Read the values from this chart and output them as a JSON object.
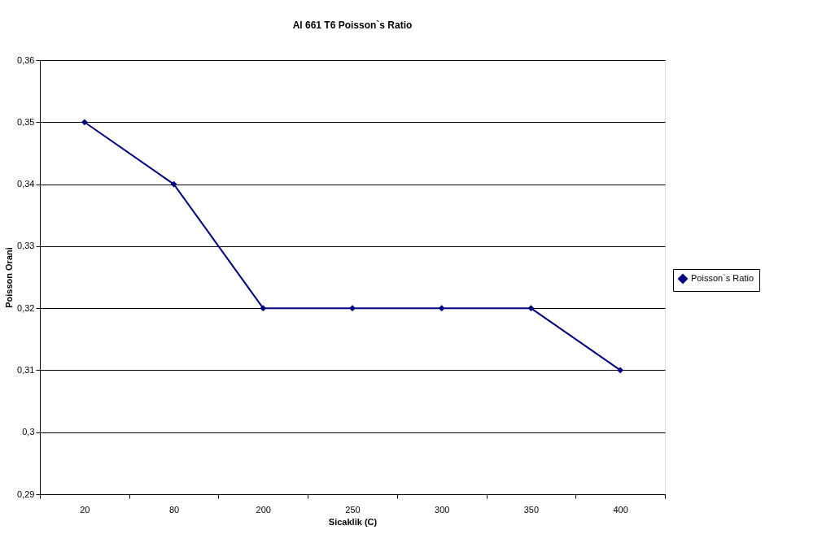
{
  "chart_data": {
    "type": "line",
    "title": "Al 661 T6 Poisson`s Ratio",
    "xlabel": "Sicaklik (C)",
    "ylabel": "Poisson Orani",
    "categories": [
      "20",
      "80",
      "200",
      "250",
      "300",
      "350",
      "400"
    ],
    "series": [
      {
        "name": "Poisson`s Ratio",
        "color": "#000080",
        "values": [
          0.35,
          0.34,
          0.32,
          0.32,
          0.32,
          0.32,
          0.31
        ]
      }
    ],
    "ylim": [
      0.29,
      0.36
    ],
    "yticks": [
      {
        "value": 0.29,
        "label": "0,29"
      },
      {
        "value": 0.3,
        "label": "0,3"
      },
      {
        "value": 0.31,
        "label": "0,31"
      },
      {
        "value": 0.32,
        "label": "0,32"
      },
      {
        "value": 0.33,
        "label": "0,33"
      },
      {
        "value": 0.34,
        "label": "0,34"
      },
      {
        "value": 0.35,
        "label": "0,35"
      },
      {
        "value": 0.36,
        "label": "0,36"
      }
    ],
    "grid": "y",
    "legend": "right",
    "marker": "diamond",
    "line_style": "solid"
  }
}
